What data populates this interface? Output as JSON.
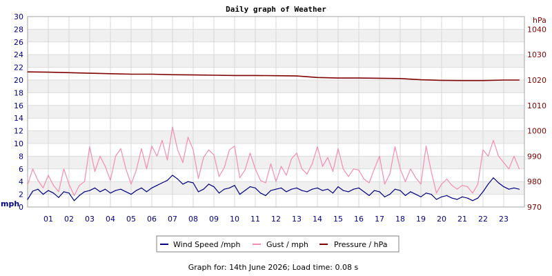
{
  "chart_data": {
    "type": "line",
    "title": "Daily graph of Weather",
    "x_ticks": [
      "01",
      "02",
      "03",
      "04",
      "05",
      "06",
      "07",
      "08",
      "09",
      "10",
      "11",
      "12",
      "13",
      "14",
      "15",
      "16",
      "17",
      "18",
      "19",
      "20",
      "21",
      "22",
      "23"
    ],
    "x_range": [
      0,
      24
    ],
    "y_left": {
      "label": "mph",
      "range": [
        0,
        30
      ],
      "ticks": [
        0,
        2,
        4,
        6,
        8,
        10,
        12,
        14,
        16,
        18,
        20,
        22,
        24,
        26,
        28,
        30
      ]
    },
    "y_right": {
      "label": "hPa",
      "range": [
        970,
        1045
      ],
      "ticks": [
        970,
        980,
        990,
        1000,
        1010,
        1020,
        1030,
        1040
      ]
    },
    "grid": true,
    "legend_position": "bottom",
    "series": [
      {
        "name": "Wind Speed /mph",
        "axis": "left",
        "color": "#000080",
        "x": [
          0,
          0.25,
          0.5,
          0.75,
          1,
          1.25,
          1.5,
          1.75,
          2,
          2.25,
          2.5,
          2.75,
          3,
          3.25,
          3.5,
          3.75,
          4,
          4.25,
          4.5,
          4.75,
          5,
          5.25,
          5.5,
          5.75,
          6,
          6.25,
          6.5,
          6.75,
          7,
          7.25,
          7.5,
          7.75,
          8,
          8.25,
          8.5,
          8.75,
          9,
          9.25,
          9.5,
          9.75,
          10,
          10.25,
          10.5,
          10.75,
          11,
          11.25,
          11.5,
          11.75,
          12,
          12.25,
          12.5,
          12.75,
          13,
          13.25,
          13.5,
          13.75,
          14,
          14.25,
          14.5,
          14.75,
          15,
          15.25,
          15.5,
          15.75,
          16,
          16.25,
          16.5,
          16.75,
          17,
          17.25,
          17.5,
          17.75,
          18,
          18.25,
          18.5,
          18.75,
          19,
          19.25,
          19.5,
          19.75,
          20,
          20.25,
          20.5,
          20.75,
          21,
          21.25,
          21.5,
          21.75,
          22,
          22.25,
          22.5,
          22.75,
          23,
          23.25,
          23.5,
          23.75
        ],
        "y": [
          1.2,
          2.5,
          2.8,
          2.0,
          2.6,
          2.2,
          1.5,
          2.4,
          2.2,
          1.0,
          1.8,
          2.4,
          2.6,
          3.0,
          2.4,
          2.8,
          2.2,
          2.6,
          2.8,
          2.4,
          2.0,
          2.6,
          3.0,
          2.4,
          3.0,
          3.4,
          3.8,
          4.2,
          5.0,
          4.4,
          3.6,
          4.0,
          3.8,
          2.4,
          2.8,
          3.6,
          3.2,
          2.2,
          2.8,
          3.0,
          3.4,
          2.0,
          2.6,
          3.2,
          3.0,
          2.2,
          1.8,
          2.6,
          2.8,
          3.0,
          2.4,
          2.8,
          3.0,
          2.6,
          2.4,
          2.8,
          3.0,
          2.6,
          2.8,
          2.2,
          3.2,
          2.6,
          2.4,
          2.8,
          3.0,
          2.4,
          1.8,
          2.6,
          2.4,
          1.6,
          2.0,
          2.8,
          2.6,
          1.8,
          2.4,
          2.0,
          1.6,
          2.2,
          2.0,
          1.2,
          1.6,
          1.8,
          1.4,
          1.2,
          1.6,
          1.4,
          1.0,
          1.4,
          2.4,
          3.6,
          4.6,
          3.8,
          3.2,
          2.8,
          3.0,
          2.8
        ]
      },
      {
        "name": "Gust / mph",
        "axis": "left",
        "color": "#f48cb4",
        "x": [
          0,
          0.25,
          0.5,
          0.75,
          1,
          1.25,
          1.5,
          1.75,
          2,
          2.25,
          2.5,
          2.75,
          3,
          3.25,
          3.5,
          3.75,
          4,
          4.25,
          4.5,
          4.75,
          5,
          5.25,
          5.5,
          5.75,
          6,
          6.25,
          6.5,
          6.75,
          7,
          7.25,
          7.5,
          7.75,
          8,
          8.25,
          8.5,
          8.75,
          9,
          9.25,
          9.5,
          9.75,
          10,
          10.25,
          10.5,
          10.75,
          11,
          11.25,
          11.5,
          11.75,
          12,
          12.25,
          12.5,
          12.75,
          13,
          13.25,
          13.5,
          13.75,
          14,
          14.25,
          14.5,
          14.75,
          15,
          15.25,
          15.5,
          15.75,
          16,
          16.25,
          16.5,
          16.75,
          17,
          17.25,
          17.5,
          17.75,
          18,
          18.25,
          18.5,
          18.75,
          19,
          19.25,
          19.5,
          19.75,
          20,
          20.25,
          20.5,
          20.75,
          21,
          21.25,
          21.5,
          21.75,
          22,
          22.25,
          22.5,
          22.75,
          23,
          23.25,
          23.5,
          23.75
        ],
        "y": [
          3.5,
          6.0,
          4.2,
          3.0,
          5.0,
          3.4,
          2.4,
          6.0,
          3.6,
          1.8,
          3.4,
          4.0,
          9.5,
          5.6,
          8.0,
          6.4,
          4.2,
          8.0,
          9.2,
          6.0,
          3.6,
          5.8,
          9.2,
          6.0,
          9.6,
          8.0,
          10.5,
          7.4,
          12.6,
          9.0,
          7.0,
          11.0,
          9.0,
          4.5,
          7.8,
          9.0,
          8.2,
          4.8,
          6.2,
          9.0,
          9.6,
          4.6,
          5.8,
          8.5,
          6.0,
          4.2,
          3.8,
          6.8,
          4.0,
          6.4,
          5.0,
          7.6,
          8.5,
          6.0,
          5.2,
          6.8,
          9.5,
          6.4,
          7.8,
          5.6,
          9.2,
          6.0,
          4.8,
          6.0,
          5.8,
          4.4,
          3.8,
          6.0,
          8.0,
          3.6,
          5.2,
          9.5,
          6.0,
          4.0,
          6.0,
          4.6,
          3.6,
          9.6,
          5.6,
          2.2,
          3.6,
          4.4,
          3.4,
          2.8,
          3.4,
          3.2,
          2.2,
          3.6,
          9.0,
          8.0,
          10.5,
          8.0,
          7.0,
          6.0,
          8.0,
          6.0
        ]
      },
      {
        "name": "Pressure / hPa",
        "axis": "right",
        "color": "#800000",
        "x": [
          0,
          1,
          2,
          3,
          4,
          5,
          6,
          7,
          8,
          9,
          10,
          11,
          12,
          13,
          14,
          15,
          16,
          17,
          18,
          19,
          20,
          21,
          22,
          23,
          23.75
        ],
        "y": [
          1023.2,
          1023.1,
          1022.9,
          1022.7,
          1022.5,
          1022.3,
          1022.3,
          1022.1,
          1022.0,
          1021.9,
          1021.8,
          1021.8,
          1021.7,
          1021.6,
          1021.0,
          1020.8,
          1020.8,
          1020.7,
          1020.6,
          1020.1,
          1019.9,
          1019.8,
          1019.8,
          1020.0,
          1020.0
        ]
      }
    ],
    "footer": "Graph for: 14th June 2026; Load time: 0.08 s"
  }
}
